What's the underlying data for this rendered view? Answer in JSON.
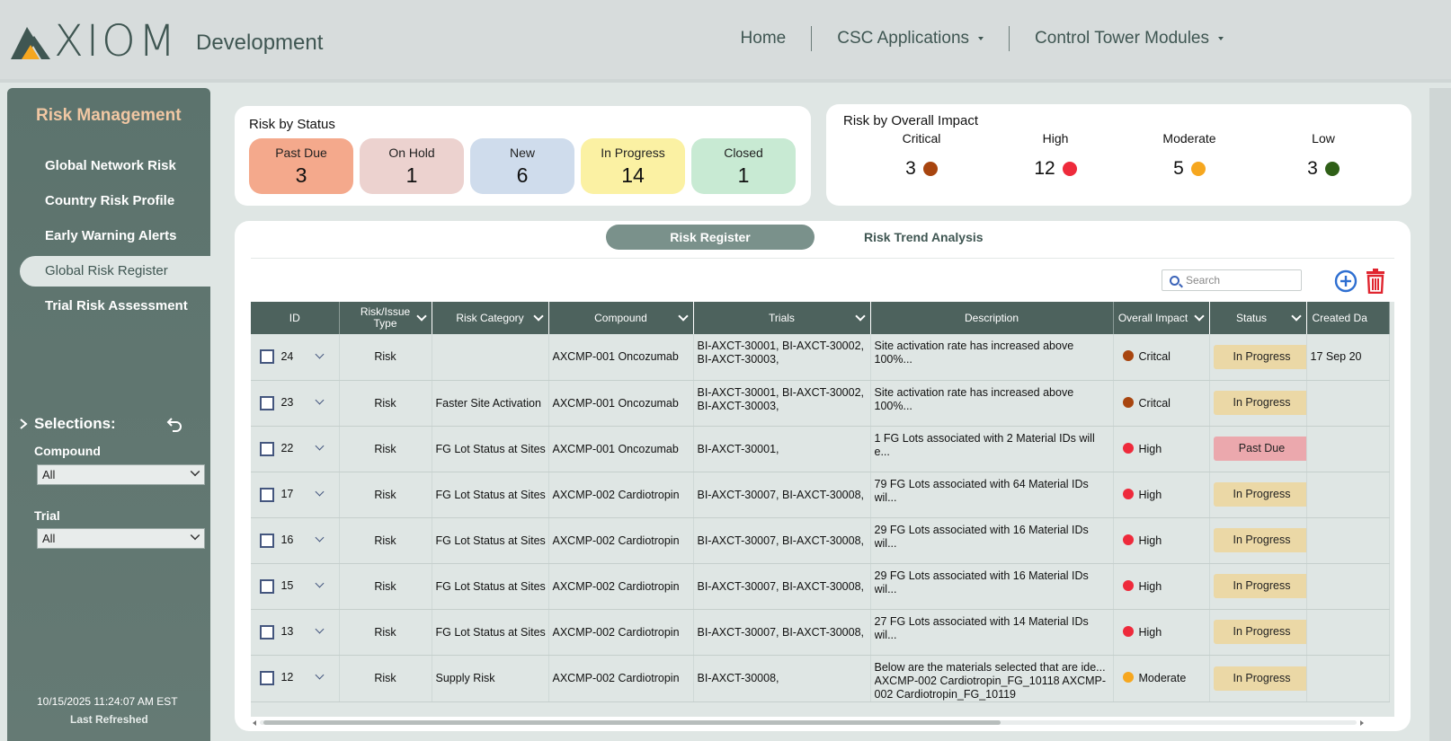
{
  "header": {
    "logo_text": "XIOM",
    "env": "Development",
    "nav": [
      {
        "label": "Home"
      },
      {
        "label": "CSC Applications"
      },
      {
        "label": "Control Tower Modules"
      }
    ]
  },
  "sidebar": {
    "title": "Risk Management",
    "items": [
      {
        "label": "Global Network Risk"
      },
      {
        "label": "Country Risk Profile"
      },
      {
        "label": "Early Warning Alerts"
      },
      {
        "label": "Global Risk Register"
      },
      {
        "label": "Trial Risk Assessment"
      }
    ],
    "selections_label": "Selections:",
    "filters": {
      "compound_label": "Compound",
      "compound_value": "All",
      "trial_label": "Trial",
      "trial_value": "All"
    },
    "refresh_time": "10/15/2025 11:24:07 AM EST",
    "refresh_label": "Last Refreshed"
  },
  "risk_by_status": {
    "title": "Risk by Status",
    "items": [
      {
        "label": "Past Due",
        "value": "3",
        "color": "#f4a98c"
      },
      {
        "label": "On Hold",
        "value": "1",
        "color": "#ecd2cf"
      },
      {
        "label": "New",
        "value": "6",
        "color": "#cfdcec"
      },
      {
        "label": "In Progress",
        "value": "14",
        "color": "#fbf1a3"
      },
      {
        "label": "Closed",
        "value": "1",
        "color": "#c8ead3"
      }
    ]
  },
  "risk_by_impact": {
    "title": "Risk by Overall Impact",
    "items": [
      {
        "label": "Critical",
        "value": "3",
        "color": "#a8450f"
      },
      {
        "label": "High",
        "value": "12",
        "color": "#ee2a3b"
      },
      {
        "label": "Moderate",
        "value": "5",
        "color": "#f6a71f"
      },
      {
        "label": "Low",
        "value": "3",
        "color": "#2f5f17"
      }
    ]
  },
  "tabs": {
    "active": "Risk Register",
    "other": "Risk Trend Analysis"
  },
  "search": {
    "placeholder": "Search"
  },
  "table": {
    "columns": [
      "ID",
      "Risk/Issue Type",
      "Risk Category",
      "Compound",
      "Trials",
      "Description",
      "Overall Impact",
      "Status",
      "Created Da"
    ],
    "rows": [
      {
        "id": "24",
        "type": "Risk",
        "category": "",
        "compound": "AXCMP-001 Oncozumab",
        "trials": "BI-AXCT-30001, BI-AXCT-30002, BI-AXCT-30003,",
        "description": "Site activation rate has increased above 100%...",
        "impact": "Critcal",
        "impact_color": "#a8450f",
        "status": "In Progress",
        "status_color": "#ebd8a6",
        "created": "17 Sep 20"
      },
      {
        "id": "23",
        "type": "Risk",
        "category": "Faster Site Activation",
        "compound": "AXCMP-001 Oncozumab",
        "trials": "BI-AXCT-30001, BI-AXCT-30002, BI-AXCT-30003,",
        "description": "Site activation rate has increased above 100%...",
        "impact": "Critcal",
        "impact_color": "#a8450f",
        "status": "In Progress",
        "status_color": "#ebd8a6",
        "created": ""
      },
      {
        "id": "22",
        "type": "Risk",
        "category": "FG Lot Status at Sites",
        "compound": "AXCMP-001 Oncozumab",
        "trials": "BI-AXCT-30001,",
        "description": "1 FG Lots associated with 2 Material IDs will e...",
        "impact": "High",
        "impact_color": "#ee2a3b",
        "status": "Past Due",
        "status_color": "#eba8ad",
        "created": ""
      },
      {
        "id": "17",
        "type": "Risk",
        "category": "FG Lot Status at Sites",
        "compound": "AXCMP-002 Cardiotropin",
        "trials": "BI-AXCT-30007, BI-AXCT-30008,",
        "description": "79 FG Lots associated with 64 Material IDs wil...",
        "impact": "High",
        "impact_color": "#ee2a3b",
        "status": "In Progress",
        "status_color": "#ebd8a6",
        "created": ""
      },
      {
        "id": "16",
        "type": "Risk",
        "category": "FG Lot Status at Sites",
        "compound": "AXCMP-002 Cardiotropin",
        "trials": "BI-AXCT-30007, BI-AXCT-30008,",
        "description": "29 FG Lots associated with 16 Material IDs wil...",
        "impact": "High",
        "impact_color": "#ee2a3b",
        "status": "In Progress",
        "status_color": "#ebd8a6",
        "created": ""
      },
      {
        "id": "15",
        "type": "Risk",
        "category": "FG Lot Status at Sites",
        "compound": "AXCMP-002 Cardiotropin",
        "trials": "BI-AXCT-30007, BI-AXCT-30008,",
        "description": "29 FG Lots associated with 16 Material IDs wil...",
        "impact": "High",
        "impact_color": "#ee2a3b",
        "status": "In Progress",
        "status_color": "#ebd8a6",
        "created": ""
      },
      {
        "id": "13",
        "type": "Risk",
        "category": "FG Lot Status at Sites",
        "compound": "AXCMP-002 Cardiotropin",
        "trials": "BI-AXCT-30007, BI-AXCT-30008,",
        "description": "27 FG Lots associated with 14 Material IDs wil...",
        "impact": "High",
        "impact_color": "#ee2a3b",
        "status": "In Progress",
        "status_color": "#ebd8a6",
        "created": ""
      },
      {
        "id": "12",
        "type": "Risk",
        "category": "Supply Risk",
        "compound": "AXCMP-002 Cardiotropin",
        "trials": "BI-AXCT-30008,",
        "description": "Below are the materials selected that are ide... AXCMP-002 Cardiotropin_FG_10118 AXCMP-002 Cardiotropin_FG_10119",
        "impact": "Moderate",
        "impact_color": "#f6a71f",
        "status": "In Progress",
        "status_color": "#ebd8a6",
        "created": ""
      }
    ]
  }
}
